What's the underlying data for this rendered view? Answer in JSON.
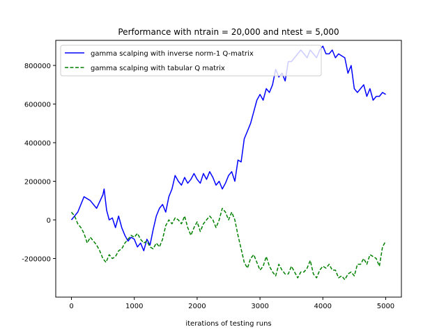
{
  "chart_data": {
    "type": "line",
    "title": "Performance with ntrain = 20,000 and ntest = 5,000",
    "xlabel": "iterations of testing runs",
    "ylabel": "",
    "xlim": [
      -250,
      5250
    ],
    "ylim": [
      -400000,
      930000
    ],
    "xticks": [
      0,
      1000,
      2000,
      3000,
      4000,
      5000
    ],
    "yticks": [
      -200000,
      0,
      200000,
      400000,
      600000,
      800000
    ],
    "legend_position": "upper-left",
    "grid": false,
    "series": [
      {
        "name": "gamma scalping with inverse norm-1 Q-matrix",
        "color": "#0000ff",
        "style": "solid",
        "x": [
          0,
          100,
          200,
          300,
          400,
          500,
          520,
          560,
          600,
          650,
          700,
          750,
          800,
          850,
          900,
          950,
          1000,
          1050,
          1100,
          1150,
          1200,
          1250,
          1300,
          1350,
          1400,
          1450,
          1500,
          1550,
          1600,
          1650,
          1700,
          1750,
          1800,
          1850,
          1900,
          1950,
          2000,
          2050,
          2100,
          2150,
          2200,
          2250,
          2300,
          2350,
          2400,
          2450,
          2500,
          2550,
          2600,
          2650,
          2700,
          2750,
          2800,
          2850,
          2900,
          2950,
          3000,
          3050,
          3100,
          3150,
          3200,
          3250,
          3300,
          3350,
          3400,
          3450,
          3500,
          3550,
          3600,
          3650,
          3700,
          3750,
          3800,
          3850,
          3900,
          3950,
          4000,
          4050,
          4100,
          4150,
          4200,
          4250,
          4300,
          4350,
          4400,
          4450,
          4500,
          4550,
          4600,
          4650,
          4700,
          4750,
          4800,
          4850,
          4900,
          4950,
          5000
        ],
        "y": [
          0,
          40000,
          120000,
          100000,
          60000,
          130000,
          160000,
          50000,
          0,
          10000,
          -40000,
          20000,
          -40000,
          -80000,
          -110000,
          -90000,
          -100000,
          -140000,
          -120000,
          -160000,
          -100000,
          -130000,
          -50000,
          20000,
          60000,
          80000,
          40000,
          120000,
          160000,
          230000,
          200000,
          180000,
          220000,
          190000,
          210000,
          240000,
          210000,
          190000,
          240000,
          210000,
          250000,
          220000,
          180000,
          200000,
          160000,
          190000,
          230000,
          250000,
          200000,
          310000,
          300000,
          420000,
          460000,
          500000,
          560000,
          620000,
          650000,
          620000,
          680000,
          660000,
          700000,
          780000,
          740000,
          760000,
          720000,
          820000,
          820000,
          840000,
          860000,
          880000,
          860000,
          840000,
          880000,
          860000,
          840000,
          880000,
          900000,
          860000,
          860000,
          880000,
          840000,
          860000,
          850000,
          840000,
          760000,
          800000,
          680000,
          660000,
          680000,
          700000,
          640000,
          680000,
          620000,
          640000,
          640000,
          660000,
          650000
        ]
      },
      {
        "name": "gamma scalping with tabular Q matrix",
        "color": "#008000",
        "style": "dashed",
        "x": [
          0,
          50,
          100,
          150,
          200,
          250,
          300,
          350,
          400,
          450,
          500,
          550,
          600,
          650,
          700,
          750,
          800,
          850,
          900,
          950,
          1000,
          1050,
          1100,
          1150,
          1200,
          1250,
          1300,
          1350,
          1400,
          1450,
          1500,
          1550,
          1600,
          1650,
          1700,
          1750,
          1800,
          1850,
          1900,
          1950,
          2000,
          2050,
          2100,
          2150,
          2200,
          2250,
          2300,
          2350,
          2400,
          2450,
          2500,
          2550,
          2600,
          2650,
          2700,
          2750,
          2800,
          2850,
          2900,
          2950,
          3000,
          3050,
          3100,
          3150,
          3200,
          3250,
          3300,
          3350,
          3400,
          3450,
          3500,
          3550,
          3600,
          3650,
          3700,
          3750,
          3800,
          3850,
          3900,
          3950,
          4000,
          4050,
          4100,
          4150,
          4200,
          4250,
          4300,
          4350,
          4400,
          4450,
          4500,
          4550,
          4600,
          4650,
          4700,
          4750,
          4800,
          4850,
          4900,
          4950,
          5000
        ],
        "y": [
          40000,
          20000,
          -20000,
          -40000,
          -70000,
          -120000,
          -90000,
          -110000,
          -130000,
          -160000,
          -200000,
          -220000,
          -180000,
          -200000,
          -190000,
          -160000,
          -150000,
          -120000,
          -100000,
          -80000,
          -90000,
          -70000,
          -100000,
          -120000,
          -110000,
          -140000,
          -150000,
          -120000,
          -140000,
          -100000,
          -30000,
          0,
          -20000,
          10000,
          0,
          -20000,
          20000,
          -40000,
          -80000,
          -40000,
          -10000,
          -60000,
          -20000,
          0,
          20000,
          0,
          -40000,
          0,
          60000,
          40000,
          0,
          40000,
          0,
          -80000,
          -150000,
          -220000,
          -250000,
          -200000,
          -180000,
          -220000,
          -260000,
          -240000,
          -190000,
          -240000,
          -270000,
          -290000,
          -230000,
          -260000,
          -280000,
          -280000,
          -240000,
          -270000,
          -300000,
          -270000,
          -270000,
          -250000,
          -210000,
          -280000,
          -300000,
          -260000,
          -240000,
          -250000,
          -230000,
          -260000,
          -260000,
          -300000,
          -290000,
          -310000,
          -280000,
          -270000,
          -290000,
          -230000,
          -230000,
          -200000,
          -230000,
          -180000,
          -190000,
          -200000,
          -240000,
          -140000,
          -110000
        ]
      }
    ]
  }
}
